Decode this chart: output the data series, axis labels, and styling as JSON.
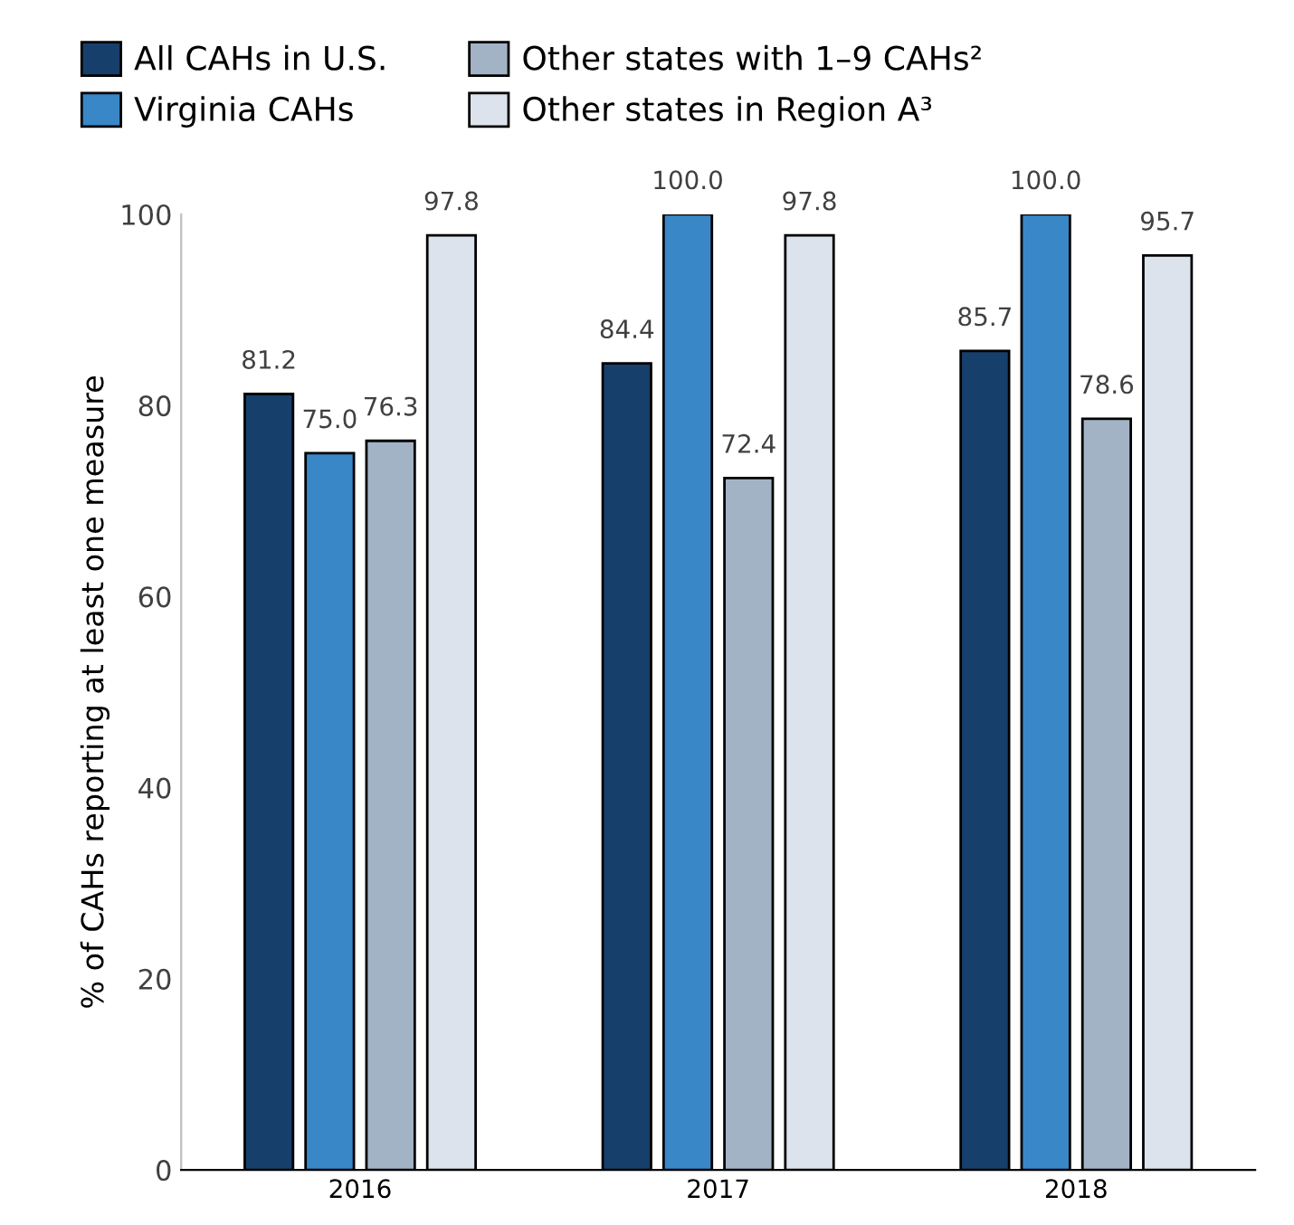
{
  "chart_data": {
    "type": "bar",
    "ylabel": "% of CAHs reporting at least one measure",
    "categories": [
      "2016",
      "2017",
      "2018"
    ],
    "series": [
      {
        "name": "All CAHs in U.S.",
        "color": "#173f6b",
        "values": [
          81.2,
          84.4,
          85.7
        ],
        "value_labels": [
          "81.2",
          "84.4",
          "85.7"
        ]
      },
      {
        "name": "Virginia CAHs",
        "color": "#3a87c8",
        "values": [
          75.0,
          100.0,
          100.0
        ],
        "value_labels": [
          "75.0",
          "100.0",
          "100.0"
        ]
      },
      {
        "name": "Other states with 1–9 CAHs²",
        "color": "#a3b3c6",
        "values": [
          76.3,
          72.4,
          78.6
        ],
        "value_labels": [
          "76.3",
          "72.4",
          "78.6"
        ]
      },
      {
        "name": "Other states in Region A³",
        "color": "#dde3ec",
        "values": [
          97.8,
          97.8,
          95.7
        ],
        "value_labels": [
          "97.8",
          "97.8",
          "95.7"
        ]
      }
    ],
    "ylim": [
      0,
      100
    ],
    "yticks": [
      0,
      20,
      40,
      60,
      80,
      100
    ],
    "grid": false,
    "legend": "top"
  }
}
